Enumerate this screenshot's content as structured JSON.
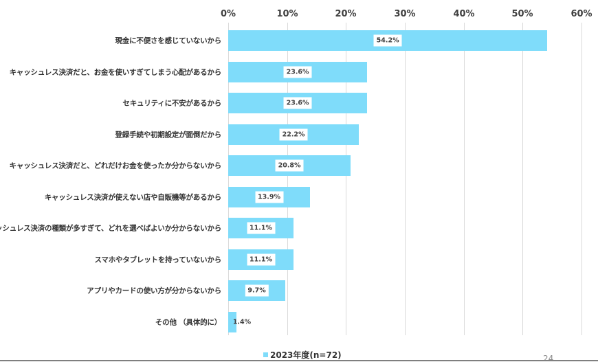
{
  "chart_data": {
    "type": "bar",
    "orientation": "horizontal",
    "title": "",
    "xlabel": "",
    "ylabel": "",
    "xlim": [
      0,
      60
    ],
    "x_ticks": [
      "0%",
      "10%",
      "20%",
      "30%",
      "40%",
      "50%",
      "60%"
    ],
    "grid": true,
    "legend_position": "bottom",
    "categories": [
      "現金に不便さを感じていないから",
      "キャッシュレス決済だと、お金を使いすぎてしまう心配があるから",
      "セキュリティに不安があるから",
      "登録手続や初期設定が面倒だから",
      "キャッシュレス決済だと、どれだけお金を使ったか分からないから",
      "キャッシュレス決済が使えない店や自販機等があるから",
      "キャッシュレス決済の種類が多すぎて、どれを選べばよいか分からないから",
      "スマホやタブレットを持っていないから",
      "アプリやカードの使い方が分からないから",
      "その他 （具体的に）"
    ],
    "series": [
      {
        "name": "2023年度(n=72)",
        "color": "#7fdcfa",
        "values": [
          54.2,
          23.6,
          23.6,
          22.2,
          20.8,
          13.9,
          11.1,
          11.1,
          9.7,
          1.4
        ],
        "labels": [
          "54.2%",
          "23.6%",
          "23.6%",
          "22.2%",
          "20.8%",
          "13.9%",
          "11.1%",
          "11.1%",
          "9.7%",
          "1.4%"
        ]
      }
    ]
  },
  "legend": {
    "label": "2023年度(n=72)",
    "color": "#7fdcfa"
  },
  "page_number": "24"
}
